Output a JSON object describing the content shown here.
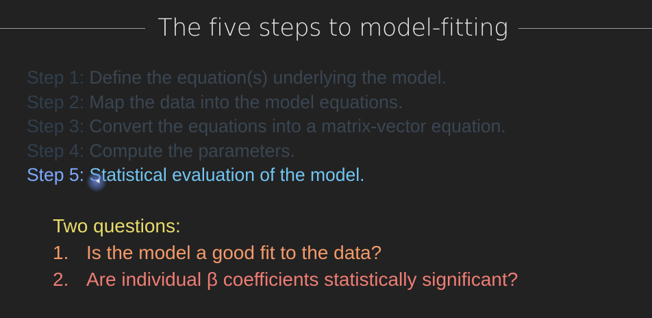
{
  "slide": {
    "title": "The five steps to model-fitting",
    "steps": [
      {
        "num": "Step 1:",
        "text": " Define the equation(s) underlying the model."
      },
      {
        "num": "Step 2:",
        "text": " Map the data into the model equations."
      },
      {
        "num": "Step 3:",
        "text": " Convert the equations into a matrix-vector equation."
      },
      {
        "num": "Step 4:",
        "text": " Compute the parameters."
      },
      {
        "num": "Step 5:",
        "text": " Statistical evaluation of the model."
      }
    ],
    "questions_heading": "Two questions:",
    "questions": [
      {
        "num": "1.",
        "text": "Is the model a good fit to the data?"
      },
      {
        "num": "2.",
        "text": "Are individual β coefficients statistically significant?"
      }
    ]
  },
  "colors": {
    "background": "#222222",
    "title": "#e6e6e6",
    "dim_step": "#3a4652",
    "active_step_number": "#7ea9ff",
    "active_step_text": "#72c5f1",
    "questions_heading": "#e8dc6a",
    "question_1": "#f59a6a",
    "question_2": "#ef7d74"
  }
}
